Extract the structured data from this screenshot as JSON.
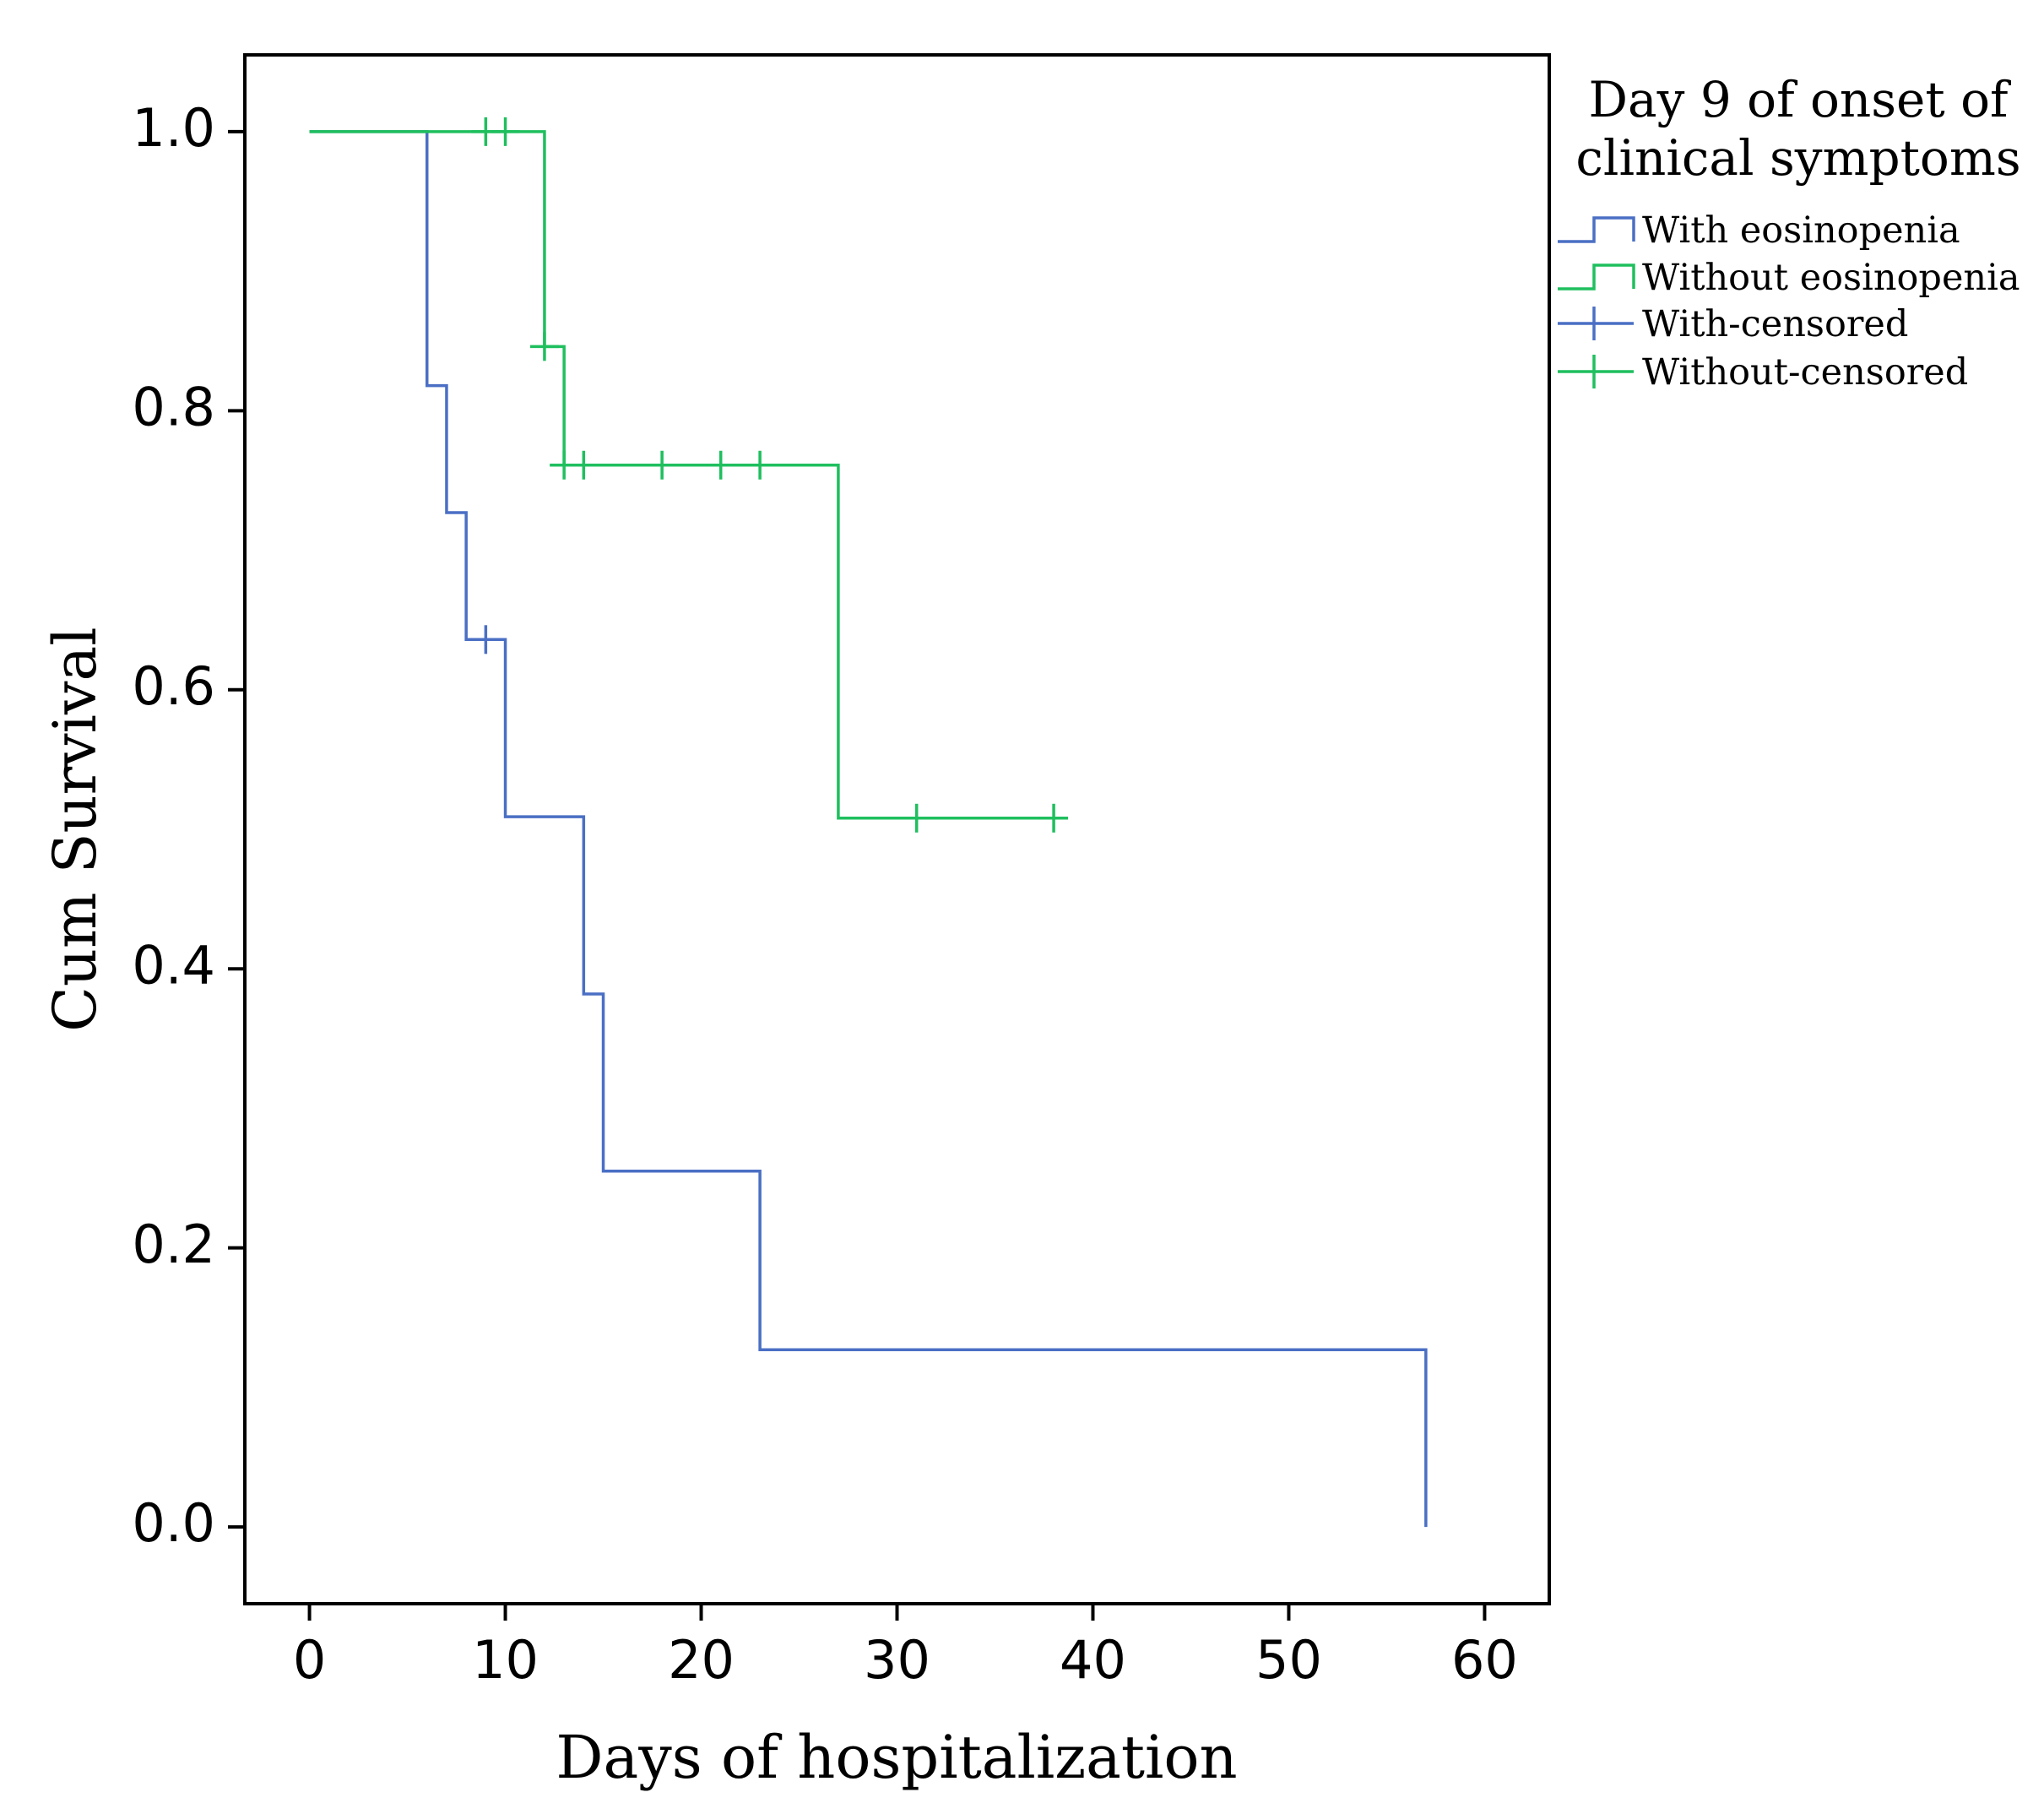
{
  "chart_data": {
    "type": "line",
    "subtype": "kaplan-meier-step",
    "xlabel": "Days of hospitalization",
    "ylabel": "Cum Survival",
    "xlim": [
      -3.3,
      63.3
    ],
    "ylim": [
      -0.055,
      1.055
    ],
    "x_ticks": [
      0,
      10,
      20,
      30,
      40,
      50,
      60
    ],
    "y_ticks": [
      0.0,
      0.2,
      0.4,
      0.6,
      0.8,
      1.0
    ],
    "y_tick_labels": [
      "0.0",
      "0.2",
      "0.4",
      "0.6",
      "0.8",
      "1.0"
    ],
    "grid": false,
    "legend": {
      "title_lines": [
        "Day 9 of onset of",
        "clinical symptoms"
      ],
      "placement": "right-top",
      "entries": [
        {
          "label": "With eosinopenia",
          "kind": "step",
          "color": "#4a6fc4"
        },
        {
          "label": "Without eosinopenia",
          "kind": "step",
          "color": "#1fbf5e"
        },
        {
          "label": "With-censored",
          "kind": "censor",
          "color": "#4a6fc4"
        },
        {
          "label": "Without-censored",
          "kind": "censor",
          "color": "#1fbf5e"
        }
      ]
    },
    "series": [
      {
        "name": "With eosinopenia",
        "color": "#4a6fc4",
        "steps": [
          [
            0,
            1.0
          ],
          [
            6,
            0.818
          ],
          [
            7,
            0.727
          ],
          [
            8,
            0.636
          ],
          [
            10,
            0.509
          ],
          [
            14,
            0.382
          ],
          [
            15,
            0.255
          ],
          [
            23,
            0.127
          ],
          [
            57,
            0.0
          ]
        ],
        "censored": [
          [
            9,
            0.636
          ]
        ]
      },
      {
        "name": "Without eosinopenia",
        "color": "#1fbf5e",
        "steps": [
          [
            0,
            1.0
          ],
          [
            12,
            0.846
          ],
          [
            13,
            0.761
          ],
          [
            27,
            0.508
          ]
        ],
        "end_x": 38.3,
        "censored": [
          [
            9,
            1.0
          ],
          [
            10,
            1.0
          ],
          [
            12,
            0.846
          ],
          [
            13,
            0.761
          ],
          [
            14,
            0.761
          ],
          [
            18,
            0.761
          ],
          [
            21,
            0.761
          ],
          [
            23,
            0.761
          ],
          [
            31,
            0.508
          ],
          [
            38,
            0.508
          ]
        ]
      }
    ]
  }
}
